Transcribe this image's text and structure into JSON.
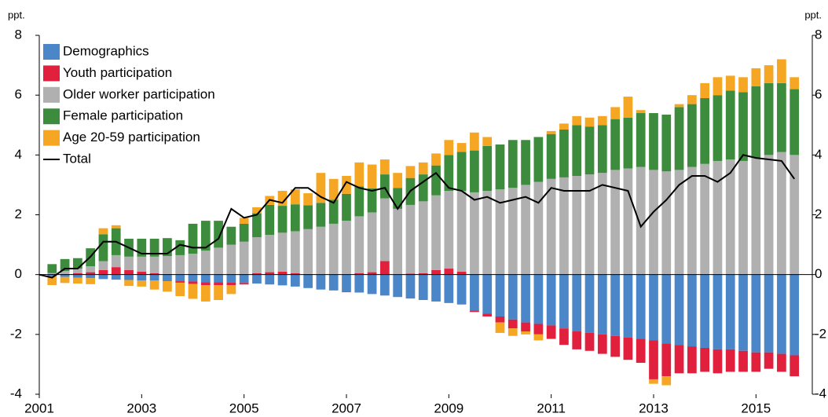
{
  "chart_data": {
    "type": "bar",
    "y_label": "ppt.",
    "y2_label": "ppt.",
    "x": [
      2001,
      2001.25,
      2001.5,
      2001.75,
      2002,
      2002.25,
      2002.5,
      2002.75,
      2003,
      2003.25,
      2003.5,
      2003.75,
      2004,
      2004.25,
      2004.5,
      2004.75,
      2005,
      2005.25,
      2005.5,
      2005.75,
      2006,
      2006.25,
      2006.5,
      2006.75,
      2007,
      2007.25,
      2007.5,
      2007.75,
      2008,
      2008.25,
      2008.5,
      2008.75,
      2009,
      2009.25,
      2009.5,
      2009.75,
      2010,
      2010.25,
      2010.5,
      2010.75,
      2011,
      2011.25,
      2011.5,
      2011.75,
      2012,
      2012.25,
      2012.5,
      2012.75,
      2013,
      2013.25,
      2013.5,
      2013.75,
      2014,
      2014.25,
      2014.5,
      2014.75,
      2015,
      2015.25,
      2015.5,
      2015.75
    ],
    "xlim": [
      2001,
      2016.1
    ],
    "xticks": [
      2001,
      2003,
      2005,
      2007,
      2009,
      2011,
      2013,
      2015
    ],
    "ylim": [
      -4,
      8
    ],
    "yticks": [
      -4,
      -2,
      0,
      2,
      4,
      6,
      8
    ],
    "y2lim": [
      -4,
      8
    ],
    "y2ticks": [
      -4,
      -2,
      0,
      2,
      4,
      6,
      8
    ],
    "series": [
      {
        "name": "Demographics",
        "color": "#4a86c8",
        "values": [
          null,
          -0.05,
          -0.08,
          -0.1,
          -0.12,
          -0.15,
          -0.17,
          -0.18,
          -0.2,
          -0.2,
          -0.22,
          -0.22,
          -0.23,
          -0.25,
          -0.25,
          -0.27,
          -0.28,
          -0.3,
          -0.33,
          -0.36,
          -0.4,
          -0.45,
          -0.5,
          -0.53,
          -0.57,
          -0.6,
          -0.65,
          -0.7,
          -0.75,
          -0.8,
          -0.85,
          -0.9,
          -0.95,
          -1.0,
          -1.2,
          -1.3,
          -1.4,
          -1.5,
          -1.6,
          -1.65,
          -1.7,
          -1.8,
          -1.9,
          -1.95,
          -2.0,
          -2.05,
          -2.1,
          -2.15,
          -2.2,
          -2.3,
          -2.35,
          -2.4,
          -2.45,
          -2.5,
          -2.5,
          -2.55,
          -2.6,
          -2.6,
          -2.65,
          -2.7
        ]
      },
      {
        "name": "Youth participation",
        "color": "#e0203c",
        "values": [
          null,
          0,
          0.02,
          0.05,
          0.08,
          0.15,
          0.25,
          0.15,
          0.1,
          0.05,
          0.02,
          -0.05,
          -0.08,
          -0.1,
          -0.1,
          -0.08,
          -0.05,
          0.05,
          0.08,
          0.1,
          0.05,
          0.02,
          0,
          0,
          -0.02,
          0.05,
          0.08,
          0.45,
          0,
          0.03,
          0.05,
          0.15,
          0.2,
          0.1,
          -0.05,
          -0.1,
          -0.2,
          -0.3,
          -0.3,
          -0.35,
          -0.45,
          -0.55,
          -0.6,
          -0.6,
          -0.65,
          -0.7,
          -0.75,
          -0.8,
          -1.3,
          -1.1,
          -0.95,
          -0.9,
          -0.8,
          -0.8,
          -0.75,
          -0.7,
          -0.65,
          -0.55,
          -0.6,
          -0.7
        ]
      },
      {
        "name": "Older worker participation",
        "color": "#b0b0b0",
        "values": [
          null,
          0.05,
          0.1,
          0.15,
          0.2,
          0.3,
          0.4,
          0.45,
          0.5,
          0.55,
          0.6,
          0.65,
          0.7,
          0.8,
          0.9,
          1.0,
          1.1,
          1.2,
          1.25,
          1.3,
          1.4,
          1.5,
          1.6,
          1.7,
          1.8,
          1.9,
          2.0,
          2.1,
          2.2,
          2.3,
          2.4,
          2.5,
          2.6,
          2.7,
          2.75,
          2.8,
          2.85,
          2.9,
          3.0,
          3.1,
          3.2,
          3.25,
          3.3,
          3.35,
          3.4,
          3.5,
          3.55,
          3.6,
          3.5,
          3.45,
          3.5,
          3.6,
          3.7,
          3.8,
          3.85,
          3.8,
          3.9,
          4.0,
          4.1,
          4.0
        ]
      },
      {
        "name": "Female participation",
        "color": "#3d8b3d",
        "values": [
          null,
          0.3,
          0.4,
          0.35,
          0.6,
          0.9,
          0.9,
          0.6,
          0.6,
          0.6,
          0.6,
          0.5,
          1.0,
          1.0,
          0.9,
          0.6,
          0.6,
          0.8,
          1.0,
          0.9,
          0.9,
          0.8,
          0.8,
          0.8,
          0.9,
          1.0,
          0.8,
          0.8,
          0.7,
          0.9,
          0.9,
          1.0,
          1.2,
          1.3,
          1.4,
          1.5,
          1.5,
          1.6,
          1.5,
          1.5,
          1.5,
          1.6,
          1.7,
          1.6,
          1.6,
          1.7,
          1.7,
          1.8,
          1.9,
          1.9,
          2.1,
          2.1,
          2.2,
          2.2,
          2.3,
          2.3,
          2.4,
          2.4,
          2.3,
          2.2
        ]
      },
      {
        "name": "Age 20-59 participation",
        "color": "#f5a623",
        "values": [
          null,
          -0.3,
          -0.2,
          -0.2,
          -0.2,
          0.2,
          0.1,
          -0.2,
          -0.2,
          -0.3,
          -0.35,
          -0.45,
          -0.5,
          -0.55,
          -0.5,
          -0.3,
          0.2,
          0.2,
          0.3,
          0.5,
          0.5,
          0.4,
          1.0,
          0.7,
          0.6,
          0.8,
          0.8,
          0.5,
          0.5,
          0.4,
          0.4,
          0.4,
          0.5,
          0.3,
          0.6,
          0.3,
          -0.35,
          -0.25,
          -0.1,
          -0.2,
          0.1,
          0.2,
          0.3,
          0.3,
          0.3,
          0.4,
          0.7,
          0.1,
          -0.15,
          -0.3,
          0.1,
          0.3,
          0.5,
          0.6,
          0.5,
          0.5,
          0.6,
          0.6,
          0.8,
          0.4
        ]
      },
      {
        "name": "Total",
        "type": "line",
        "color": "#000000",
        "values": [
          0,
          -0.1,
          0.2,
          0.2,
          0.6,
          1.1,
          1.1,
          0.9,
          0.7,
          0.7,
          0.7,
          1.0,
          0.9,
          0.9,
          1.2,
          2.2,
          1.9,
          2.0,
          2.5,
          2.4,
          2.9,
          2.9,
          2.6,
          2.4,
          3.1,
          2.9,
          2.8,
          2.9,
          2.2,
          2.8,
          3.1,
          3.4,
          2.9,
          2.8,
          2.5,
          2.6,
          2.4,
          2.5,
          2.6,
          2.4,
          2.9,
          2.8,
          2.8,
          2.8,
          3.0,
          2.9,
          2.8,
          1.6,
          2.1,
          2.5,
          3.0,
          3.3,
          3.3,
          3.1,
          3.4,
          4.0,
          3.9,
          3.85,
          3.8,
          3.2
        ]
      }
    ]
  }
}
